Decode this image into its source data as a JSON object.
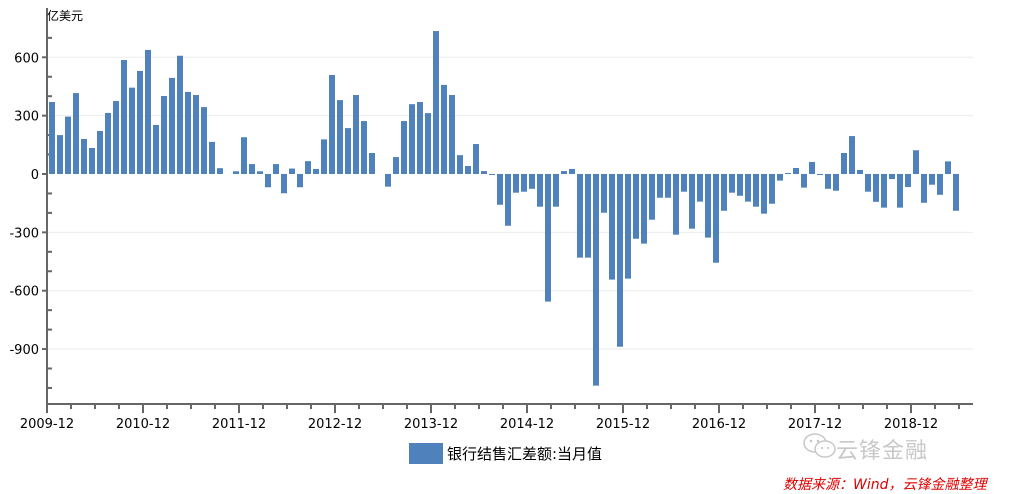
{
  "chart_data": {
    "type": "bar",
    "title": "",
    "ylabel": "亿美元",
    "xlabel": "",
    "ylim": [
      -1180,
      800
    ],
    "yticks": [
      -900,
      -600,
      -300,
      0,
      300,
      600
    ],
    "xtick_labels": [
      "2009-12",
      "2010-12",
      "2011-12",
      "2012-12",
      "2013-12",
      "2014-12",
      "2015-12",
      "2016-12",
      "2017-12",
      "2018-12"
    ],
    "grid": true,
    "legend_position": "bottom",
    "start_month": "2009-12",
    "series": [
      {
        "name": "银行结售汇差额:当月值",
        "color": "#4f81bd",
        "values": [
          370,
          200,
          295,
          416,
          180,
          134,
          221,
          314,
          375,
          586,
          444,
          530,
          638,
          252,
          401,
          494,
          608,
          422,
          406,
          344,
          165,
          30,
          0,
          14,
          189,
          51,
          14,
          -68,
          51,
          -99,
          28,
          -68,
          66,
          26,
          178,
          509,
          380,
          236,
          406,
          272,
          108,
          0,
          -65,
          87,
          272,
          359,
          370,
          313,
          735,
          458,
          406,
          97,
          41,
          154,
          15,
          -3,
          -158,
          -266,
          -96,
          -91,
          -76,
          -168,
          -656,
          -168,
          15,
          26,
          -430,
          -430,
          -1088,
          -199,
          -543,
          -888,
          -538,
          -333,
          -358,
          -235,
          -122,
          -122,
          -312,
          -91,
          -281,
          -142,
          -327,
          -456,
          -189,
          -96,
          -112,
          -142,
          -168,
          -204,
          -153,
          -34,
          5,
          31,
          -70,
          62,
          -3,
          -76,
          -86,
          108,
          195,
          21,
          -91,
          -143,
          -173,
          -26,
          -173,
          -67,
          122,
          -148,
          -55,
          -107,
          65,
          -189
        ]
      }
    ]
  },
  "labels": {
    "unit": "亿美元",
    "legend": "银行结售汇差额:当月值",
    "watermark": "云锋金融",
    "source": "数据来源：Wind，云锋金融整理"
  }
}
